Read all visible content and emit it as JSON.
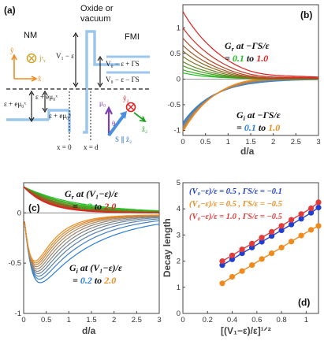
{
  "panel_a": {
    "label": "(a)",
    "nm": "NM",
    "oxide_line1": "Oxide or",
    "oxide_line2": "vacuum",
    "fmi": "FMI",
    "v1": "V₁ − ε",
    "v0_plus": "V₀ − ε + ΓS",
    "v0_minus": "V₀ − ε − ΓS",
    "eps_left": "ε + eμ₀ˣ",
    "eps_mid": "ε + eμ₀ˣ",
    "eps_small": "ε + eμ₀ˣ",
    "x0": "x = 0",
    "xd": "x = d",
    "y_axis": "ŷ",
    "x_axis": "x̂",
    "jy": "jʸᵧ",
    "mu0": "μ₀",
    "y2": "ŷ₂",
    "theta": "θ",
    "s_par": "S ∥ ẑ₂",
    "z2": "ẑ₂"
  },
  "chart_data": [
    {
      "type": "line",
      "panel": "(b)",
      "xlabel": "d/a",
      "xlim": [
        0,
        3
      ],
      "ylim": [
        -1.1,
        1.45
      ],
      "xticks": [
        "0",
        "0.5",
        "1",
        "1.5",
        "2",
        "2.5",
        "3"
      ],
      "yticks": [
        "-1",
        "-0.5",
        "0",
        "0.5",
        "1"
      ],
      "annotation_gr": {
        "prefix": "G",
        "sub": "r",
        "text": " at −ΓS/ε",
        "range_pre": "= ",
        "lo": "0.1",
        "mid": " to ",
        "hi": "1.0"
      },
      "annotation_gi": {
        "prefix": "G",
        "sub": "i",
        "text": " at −ΓS/ε",
        "range_pre": "= ",
        "lo": "0.1",
        "mid": " to ",
        "hi": "1.0"
      },
      "series_gr": {
        "params": [
          0.1,
          0.2,
          0.3,
          0.4,
          0.5,
          0.6,
          0.7,
          0.8,
          0.9,
          1.0
        ],
        "y0": [
          0.12,
          0.18,
          0.26,
          0.34,
          0.44,
          0.55,
          0.66,
          0.8,
          1.0,
          1.32
        ],
        "decay": [
          1.6,
          1.55,
          1.5,
          1.45,
          1.4,
          1.35,
          1.3,
          1.25,
          1.2,
          1.15
        ]
      },
      "series_gi": {
        "params": [
          0.1,
          0.2,
          0.3,
          0.4,
          0.5,
          0.6,
          0.7,
          0.8,
          0.9,
          1.0
        ],
        "amp": [
          0.85,
          0.88,
          0.9,
          0.92,
          0.94,
          0.96,
          0.98,
          1.0,
          1.02,
          1.04
        ]
      }
    },
    {
      "type": "line",
      "panel": "(c)",
      "xlabel": "d/a",
      "xlim": [
        0,
        3
      ],
      "ylim": [
        -1.0,
        0.3
      ],
      "xticks": [
        "0",
        "0.5",
        "1",
        "1.5",
        "2",
        "2.5",
        "3"
      ],
      "yticks": [
        "-1",
        "-0.5",
        "0"
      ],
      "annotation_gr": {
        "prefix": "G",
        "sub": "r",
        "text": " at (V₁−ε)/ε",
        "range_pre": "= ",
        "lo": "0.2",
        "mid": " to ",
        "hi": "2.0"
      },
      "annotation_gi": {
        "prefix": "G",
        "sub": "i",
        "text": " at (V₁−ε)/ε",
        "range_pre": "= ",
        "lo": "0.2",
        "mid": " to ",
        "hi": "2.0"
      },
      "series_gr": {
        "params": [
          0.2,
          0.4,
          0.6,
          0.8,
          1.0,
          1.2,
          1.4,
          1.6,
          1.8,
          2.0
        ],
        "y0": [
          0.26,
          0.26,
          0.26,
          0.26,
          0.26,
          0.26,
          0.26,
          0.26,
          0.26,
          0.26
        ],
        "decay": [
          1.2,
          1.05,
          0.95,
          0.85,
          0.78,
          0.72,
          0.66,
          0.6,
          0.56,
          0.52
        ]
      },
      "series_gi": {
        "params": [
          0.2,
          0.4,
          0.6,
          0.8,
          1.0,
          1.2,
          1.4,
          1.6,
          1.8,
          2.0
        ],
        "decay": [
          1.25,
          1.05,
          0.92,
          0.82,
          0.74,
          0.67,
          0.61,
          0.56,
          0.52,
          0.48
        ]
      }
    },
    {
      "type": "scatter",
      "panel": "(d)",
      "xlabel": "[(V₁−ε)/ε]¹ᐟ²",
      "ylabel": "Decay length",
      "xlim": [
        0,
        1.1
      ],
      "ylim": [
        0,
        5
      ],
      "xticks": [
        "0",
        "0.2",
        "0.4",
        "0.6",
        "0.8",
        "1"
      ],
      "yticks": [
        "0",
        "1",
        "2",
        "3",
        "4",
        "5"
      ],
      "series": [
        {
          "name": "(V₀−ε)/ε = 0.5 ,  ΓS/ε = −0.1",
          "color": "#1f3fd0",
          "x": [
            0.32,
            0.4,
            0.48,
            0.56,
            0.64,
            0.72,
            0.8,
            0.88,
            0.96,
            1.04,
            1.1
          ],
          "y": [
            1.85,
            2.07,
            2.3,
            2.52,
            2.74,
            2.96,
            3.18,
            3.4,
            3.62,
            3.85,
            4.05
          ]
        },
        {
          "name": "(V₀−ε)/ε = 0.5 ,  ΓS/ε = −0.5",
          "color": "#f08a1c",
          "x": [
            0.32,
            0.4,
            0.48,
            0.56,
            0.64,
            0.72,
            0.8,
            0.88,
            0.96,
            1.04,
            1.1
          ],
          "y": [
            1.15,
            1.4,
            1.62,
            1.85,
            2.08,
            2.3,
            2.52,
            2.75,
            2.98,
            3.2,
            3.35
          ]
        },
        {
          "name": "(V₀−ε)/ε = 1.0 ,  ΓS/ε = −0.5",
          "color": "#e33a3a",
          "x": [
            0.32,
            0.4,
            0.48,
            0.56,
            0.64,
            0.72,
            0.8,
            0.88,
            0.96,
            1.04,
            1.1
          ],
          "y": [
            2.0,
            2.22,
            2.45,
            2.67,
            2.9,
            3.12,
            3.35,
            3.58,
            3.8,
            4.02,
            4.25
          ]
        }
      ]
    }
  ],
  "colors": {
    "green": "#20c020",
    "red": "#e02020",
    "blue": "#2a7fd8",
    "orange": "#f08a1c"
  }
}
